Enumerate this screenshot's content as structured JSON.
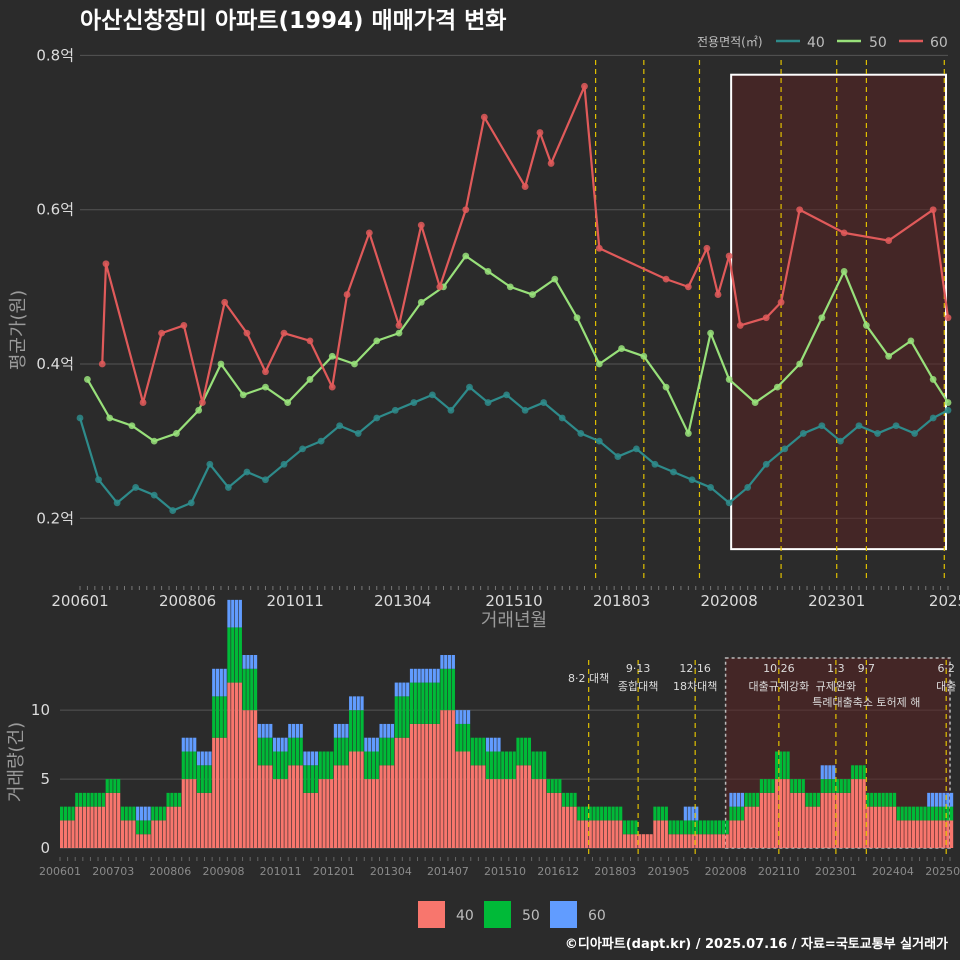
{
  "title": "아산신창장미 아파트(1994) 매매가격 변화",
  "footer": "©디아파트(dapt.kr) / 2025.07.16 / 자료=국토교통부 실거래가",
  "colors": {
    "bg": "#2b2b2b",
    "grid": "#555555",
    "s40": "#2e8b8b",
    "s50": "#98e07a",
    "s60": "#e05a5a",
    "bar40": "#f8766d",
    "bar50": "#00ba38",
    "bar60": "#619cff",
    "policy": "#e0c000",
    "highlight": "#5a2323"
  },
  "chart_data": [
    {
      "type": "line",
      "title": "아산신창장미 아파트(1994) 매매가격 변화",
      "xlabel": "거래년월",
      "ylabel": "평균가(원)",
      "ylim": [
        0.12,
        0.82
      ],
      "y_ticks": [
        0.2,
        0.4,
        0.6,
        0.8
      ],
      "y_tick_labels": [
        "0.2억",
        "0.4억",
        "0.6억",
        "0.8억"
      ],
      "x_ticks": [
        "200601",
        "200806",
        "201011",
        "201304",
        "201510",
        "201803",
        "202008",
        "202301",
        "2025"
      ],
      "legend_title": "전용면적(㎡)",
      "legend_position": "top-right",
      "grid": true,
      "highlight_range": [
        "2020-08",
        "2025-07"
      ],
      "series": [
        {
          "name": "40",
          "points": [
            [
              "2006-01",
              0.33
            ],
            [
              "2006-06",
              0.25
            ],
            [
              "2006-11",
              0.22
            ],
            [
              "2007-04",
              0.24
            ],
            [
              "2007-09",
              0.23
            ],
            [
              "2008-02",
              0.21
            ],
            [
              "2008-07",
              0.22
            ],
            [
              "2008-12",
              0.27
            ],
            [
              "2009-05",
              0.24
            ],
            [
              "2009-10",
              0.26
            ],
            [
              "2010-03",
              0.25
            ],
            [
              "2010-08",
              0.27
            ],
            [
              "2011-01",
              0.29
            ],
            [
              "2011-06",
              0.3
            ],
            [
              "2011-11",
              0.32
            ],
            [
              "2012-04",
              0.31
            ],
            [
              "2012-09",
              0.33
            ],
            [
              "2013-02",
              0.34
            ],
            [
              "2013-07",
              0.35
            ],
            [
              "2013-12",
              0.36
            ],
            [
              "2014-05",
              0.34
            ],
            [
              "2014-10",
              0.37
            ],
            [
              "2015-03",
              0.35
            ],
            [
              "2015-08",
              0.36
            ],
            [
              "2016-01",
              0.34
            ],
            [
              "2016-06",
              0.35
            ],
            [
              "2016-11",
              0.33
            ],
            [
              "2017-04",
              0.31
            ],
            [
              "2017-09",
              0.3
            ],
            [
              "2018-02",
              0.28
            ],
            [
              "2018-07",
              0.29
            ],
            [
              "2018-12",
              0.27
            ],
            [
              "2019-05",
              0.26
            ],
            [
              "2019-10",
              0.25
            ],
            [
              "2020-03",
              0.24
            ],
            [
              "2020-08",
              0.22
            ],
            [
              "2021-01",
              0.24
            ],
            [
              "2021-06",
              0.27
            ],
            [
              "2021-11",
              0.29
            ],
            [
              "2022-04",
              0.31
            ],
            [
              "2022-09",
              0.32
            ],
            [
              "2023-02",
              0.3
            ],
            [
              "2023-07",
              0.32
            ],
            [
              "2023-12",
              0.31
            ],
            [
              "2024-05",
              0.32
            ],
            [
              "2024-10",
              0.31
            ],
            [
              "2025-03",
              0.33
            ],
            [
              "2025-07",
              0.34
            ]
          ]
        },
        {
          "name": "50",
          "points": [
            [
              "2006-03",
              0.38
            ],
            [
              "2006-09",
              0.33
            ],
            [
              "2007-03",
              0.32
            ],
            [
              "2007-09",
              0.3
            ],
            [
              "2008-03",
              0.31
            ],
            [
              "2008-09",
              0.34
            ],
            [
              "2009-03",
              0.4
            ],
            [
              "2009-09",
              0.36
            ],
            [
              "2010-03",
              0.37
            ],
            [
              "2010-09",
              0.35
            ],
            [
              "2011-03",
              0.38
            ],
            [
              "2011-09",
              0.41
            ],
            [
              "2012-03",
              0.4
            ],
            [
              "2012-09",
              0.43
            ],
            [
              "2013-03",
              0.44
            ],
            [
              "2013-09",
              0.48
            ],
            [
              "2014-03",
              0.5
            ],
            [
              "2014-09",
              0.54
            ],
            [
              "2015-03",
              0.52
            ],
            [
              "2015-09",
              0.5
            ],
            [
              "2016-03",
              0.49
            ],
            [
              "2016-09",
              0.51
            ],
            [
              "2017-03",
              0.46
            ],
            [
              "2017-09",
              0.4
            ],
            [
              "2018-03",
              0.42
            ],
            [
              "2018-09",
              0.41
            ],
            [
              "2019-03",
              0.37
            ],
            [
              "2019-09",
              0.31
            ],
            [
              "2020-03",
              0.44
            ],
            [
              "2020-08",
              0.38
            ],
            [
              "2021-03",
              0.35
            ],
            [
              "2021-09",
              0.37
            ],
            [
              "2022-03",
              0.4
            ],
            [
              "2022-09",
              0.46
            ],
            [
              "2023-03",
              0.52
            ],
            [
              "2023-09",
              0.45
            ],
            [
              "2024-03",
              0.41
            ],
            [
              "2024-09",
              0.43
            ],
            [
              "2025-03",
              0.38
            ],
            [
              "2025-07",
              0.35
            ]
          ]
        },
        {
          "name": "60",
          "points": [
            [
              "2006-07",
              0.4
            ],
            [
              "2006-08",
              0.53
            ],
            [
              "2007-06",
              0.35
            ],
            [
              "2007-11",
              0.44
            ],
            [
              "2008-05",
              0.45
            ],
            [
              "2008-10",
              0.35
            ],
            [
              "2009-04",
              0.48
            ],
            [
              "2009-10",
              0.44
            ],
            [
              "2010-03",
              0.39
            ],
            [
              "2010-08",
              0.44
            ],
            [
              "2011-03",
              0.43
            ],
            [
              "2011-09",
              0.37
            ],
            [
              "2012-01",
              0.49
            ],
            [
              "2012-07",
              0.57
            ],
            [
              "2013-03",
              0.45
            ],
            [
              "2013-09",
              0.58
            ],
            [
              "2014-02",
              0.5
            ],
            [
              "2014-09",
              0.6
            ],
            [
              "2015-02",
              0.72
            ],
            [
              "2016-01",
              0.63
            ],
            [
              "2016-05",
              0.7
            ],
            [
              "2016-08",
              0.66
            ],
            [
              "2017-05",
              0.76
            ],
            [
              "2017-09",
              0.55
            ],
            [
              "2019-03",
              0.51
            ],
            [
              "2019-09",
              0.5
            ],
            [
              "2020-02",
              0.55
            ],
            [
              "2020-05",
              0.49
            ],
            [
              "2020-08",
              0.54
            ],
            [
              "2020-11",
              0.45
            ],
            [
              "2021-06",
              0.46
            ],
            [
              "2021-10",
              0.48
            ],
            [
              "2022-03",
              0.6
            ],
            [
              "2023-03",
              0.57
            ],
            [
              "2024-03",
              0.56
            ],
            [
              "2025-03",
              0.6
            ],
            [
              "2025-07",
              0.46
            ]
          ]
        }
      ]
    },
    {
      "type": "bar",
      "xlabel": "",
      "ylabel": "거래량(건)",
      "ylim": [
        0,
        14
      ],
      "y_ticks": [
        0,
        5,
        10
      ],
      "x_ticks": [
        "200601",
        "200703",
        "200806",
        "200908",
        "201011",
        "201201",
        "201304",
        "201407",
        "201510",
        "201612",
        "201803",
        "201905",
        "202008",
        "202110",
        "202301",
        "202404",
        "202506"
      ],
      "legend_position": "bottom",
      "grid": true,
      "highlight_range": [
        "2020-08",
        "2025-07"
      ],
      "series": [
        {
          "name": "40",
          "values_profile": [
            2,
            3,
            3,
            4,
            2,
            1,
            2,
            3,
            5,
            4,
            8,
            12,
            10,
            6,
            5,
            6,
            4,
            5,
            6,
            7,
            5,
            6,
            8,
            9,
            9,
            10,
            7,
            6,
            5,
            5,
            6,
            5,
            4,
            3,
            2,
            2,
            2,
            1,
            1,
            2,
            1,
            1,
            1,
            1,
            2,
            3,
            4,
            5,
            4,
            3,
            4,
            4,
            5,
            3,
            3,
            2,
            2,
            2
          ]
        },
        {
          "name": "50",
          "values_profile": [
            1,
            1,
            1,
            1,
            1,
            1,
            1,
            1,
            2,
            2,
            3,
            4,
            3,
            2,
            2,
            2,
            2,
            2,
            2,
            3,
            2,
            2,
            3,
            3,
            3,
            3,
            2,
            2,
            2,
            2,
            2,
            2,
            1,
            1,
            1,
            1,
            1,
            1,
            0,
            1,
            1,
            1,
            1,
            1,
            1,
            1,
            1,
            2,
            1,
            1,
            1,
            1,
            1,
            1,
            1,
            1,
            1,
            1
          ]
        },
        {
          "name": "60",
          "values_profile": [
            0,
            0,
            0,
            0,
            0,
            1,
            0,
            0,
            1,
            1,
            2,
            2,
            1,
            1,
            1,
            1,
            1,
            0,
            1,
            1,
            1,
            1,
            1,
            1,
            1,
            1,
            1,
            0,
            1,
            0,
            0,
            0,
            0,
            0,
            0,
            0,
            0,
            0,
            0,
            0,
            0,
            1,
            0,
            0,
            1,
            0,
            0,
            0,
            0,
            0,
            1,
            0,
            0,
            0,
            0,
            0,
            0,
            1
          ]
        }
      ]
    }
  ],
  "axis": {
    "top_xlabel": "거래년월",
    "top_ylabel": "평균가(원)",
    "bottom_ylabel": "거래량(건)",
    "top_y_labels": [
      "0.2억",
      "0.4억",
      "0.6억",
      "0.8억"
    ],
    "top_x_labels": [
      "200601",
      "200806",
      "201011",
      "201304",
      "201510",
      "201803",
      "202008",
      "202301",
      "2025"
    ],
    "bottom_y_labels": [
      "0",
      "5",
      "10"
    ],
    "bottom_x_labels": [
      "200601",
      "200703",
      "200806",
      "200908",
      "201011",
      "201201",
      "201304",
      "201407",
      "201510",
      "201612",
      "201803",
      "201905",
      "202008",
      "202110",
      "202301",
      "202404",
      "202506"
    ]
  },
  "legend": {
    "title": "전용면적(㎡)",
    "top_items": [
      "40",
      "50",
      "60"
    ],
    "bottom_items": [
      "40",
      "50",
      "60"
    ]
  },
  "policy_markers": [
    {
      "date": "2017-08",
      "label1": "8·2 대책",
      "label2": ""
    },
    {
      "date": "2018-09",
      "label1": "9·13",
      "label2": "종합대책"
    },
    {
      "date": "2019-12",
      "label1": "12·16",
      "label2": "18차대책"
    },
    {
      "date": "2021-10",
      "label1": "10·26",
      "label2": "대출규제강화"
    },
    {
      "date": "2023-01",
      "label1": "1·3",
      "label2": "규제완화"
    },
    {
      "date": "2023-09",
      "label1": "9·7",
      "label2": "특례대출축소 토허제 해"
    },
    {
      "date": "2025-06",
      "label1": "6·2",
      "label2": "대출"
    }
  ]
}
